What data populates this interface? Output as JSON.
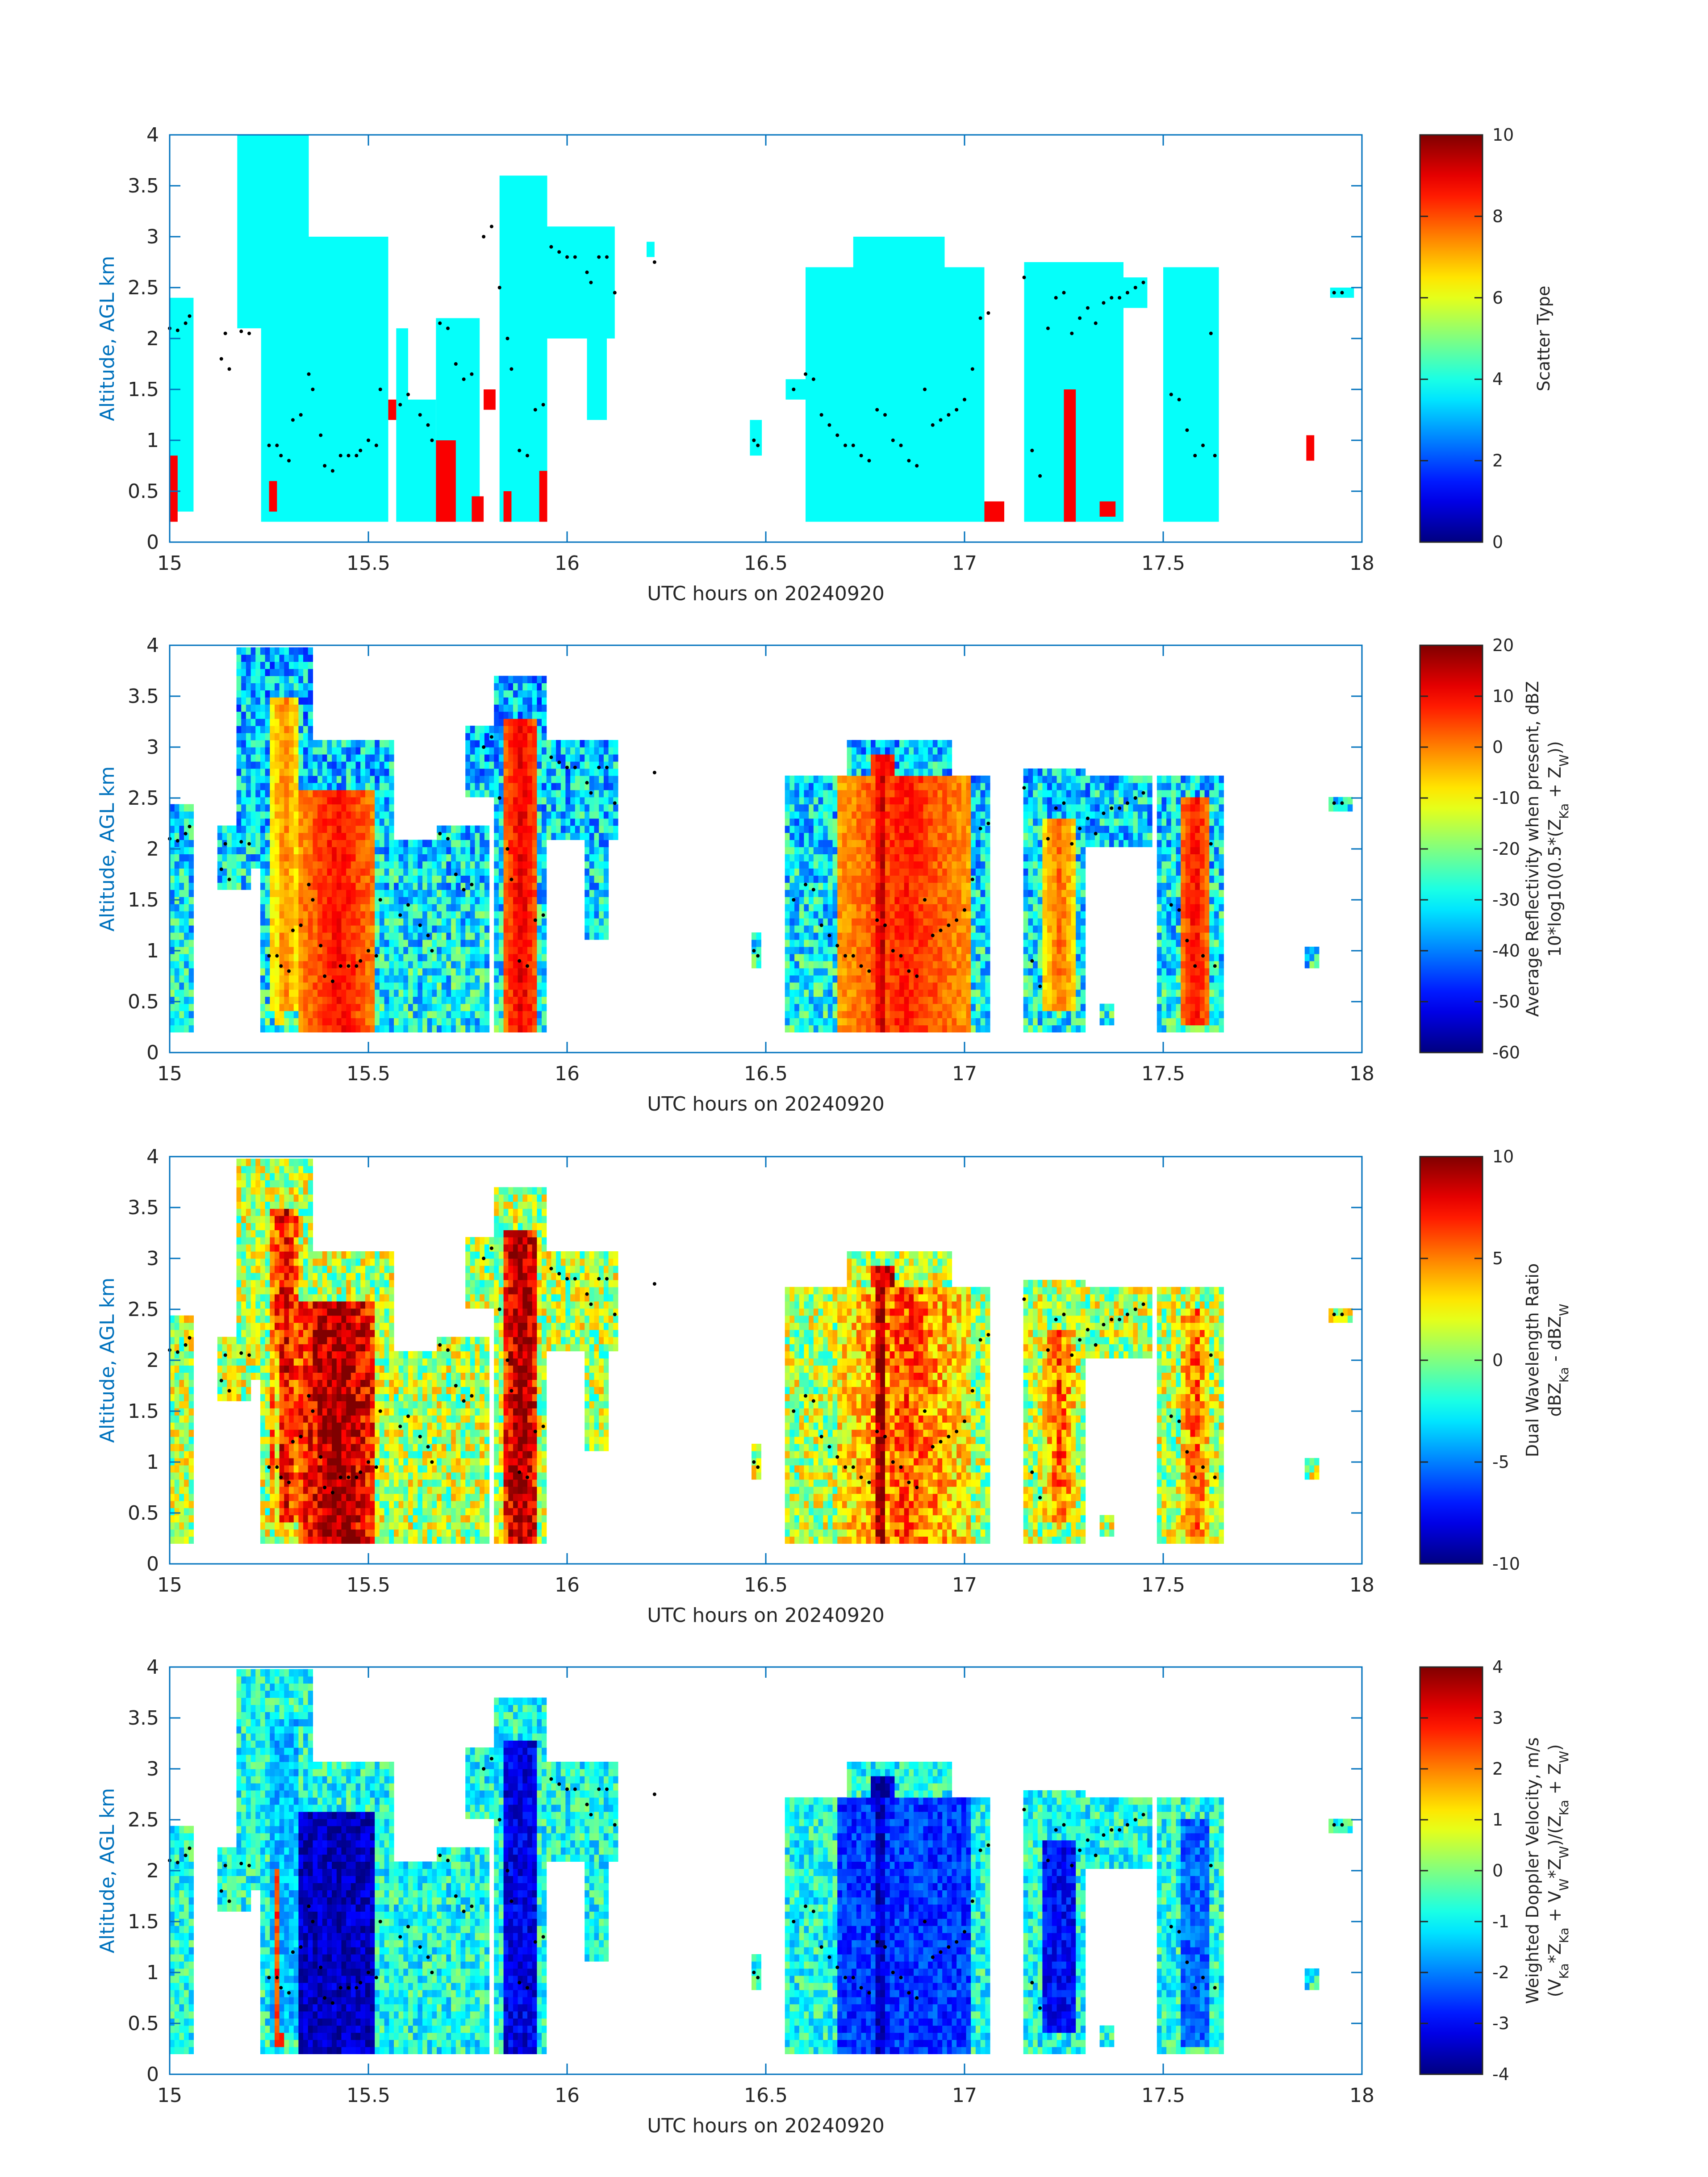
{
  "figure": {
    "date": "20240920"
  },
  "chart_data": [
    {
      "type": "heatmap",
      "name": "scatter-type",
      "xlabel": "UTC hours on 20240920",
      "ylabel": "Altitude, AGL km",
      "xlim": [
        15,
        18
      ],
      "ylim": [
        0,
        4
      ],
      "xticks": [
        "15",
        "15.5",
        "16",
        "16.5",
        "17",
        "17.5",
        "18"
      ],
      "yticks": [
        "0",
        "0.5",
        "1",
        "1.5",
        "2",
        "2.5",
        "3",
        "3.5",
        "4"
      ],
      "colorbar": {
        "label_lines": [
          "Scatter Type"
        ],
        "ticks": [
          "0",
          "2",
          "4",
          "6",
          "8",
          "10"
        ],
        "range": [
          0,
          10
        ],
        "colormap": "jet"
      },
      "field": "scatter",
      "cells": [
        {
          "t0": 15.0,
          "t1": 15.06,
          "z0": 0.3,
          "z1": 2.4,
          "value": 3.8
        },
        {
          "t0": 15.0,
          "t1": 15.02,
          "z0": 0.2,
          "z1": 0.85,
          "value": 8.8
        },
        {
          "t0": 15.17,
          "t1": 15.35,
          "z0": 2.1,
          "z1": 4.0,
          "value": 3.8
        },
        {
          "t0": 15.23,
          "t1": 15.55,
          "z0": 0.2,
          "z1": 3.0,
          "value": 3.8
        },
        {
          "t0": 15.25,
          "t1": 15.27,
          "z0": 0.3,
          "z1": 0.6,
          "value": 8.8
        },
        {
          "t0": 15.57,
          "t1": 15.6,
          "z0": 0.2,
          "z1": 2.1,
          "value": 3.8
        },
        {
          "t0": 15.55,
          "t1": 15.57,
          "z0": 1.2,
          "z1": 1.4,
          "value": 8.8
        },
        {
          "t0": 15.6,
          "t1": 15.67,
          "z0": 0.2,
          "z1": 1.4,
          "value": 3.8
        },
        {
          "t0": 15.67,
          "t1": 15.78,
          "z0": 0.2,
          "z1": 2.2,
          "value": 3.8
        },
        {
          "t0": 15.67,
          "t1": 15.72,
          "z0": 0.2,
          "z1": 1.0,
          "value": 8.8
        },
        {
          "t0": 15.76,
          "t1": 15.79,
          "z0": 0.2,
          "z1": 0.45,
          "value": 8.8
        },
        {
          "t0": 15.79,
          "t1": 15.82,
          "z0": 1.3,
          "z1": 1.5,
          "value": 8.8
        },
        {
          "t0": 15.83,
          "t1": 15.95,
          "z0": 0.2,
          "z1": 3.6,
          "value": 3.8
        },
        {
          "t0": 15.84,
          "t1": 15.86,
          "z0": 0.2,
          "z1": 0.5,
          "value": 8.8
        },
        {
          "t0": 15.93,
          "t1": 15.95,
          "z0": 0.2,
          "z1": 0.7,
          "value": 8.8
        },
        {
          "t0": 15.95,
          "t1": 16.12,
          "z0": 2.0,
          "z1": 3.1,
          "value": 3.8
        },
        {
          "t0": 16.05,
          "t1": 16.1,
          "z0": 1.2,
          "z1": 2.0,
          "value": 3.8
        },
        {
          "t0": 16.2,
          "t1": 16.22,
          "z0": 2.8,
          "z1": 2.95,
          "value": 3.8
        },
        {
          "t0": 16.46,
          "t1": 16.49,
          "z0": 0.85,
          "z1": 1.2,
          "value": 3.8
        },
        {
          "t0": 16.55,
          "t1": 16.6,
          "z0": 1.4,
          "z1": 1.6,
          "value": 3.8
        },
        {
          "t0": 16.6,
          "t1": 17.05,
          "z0": 0.2,
          "z1": 2.7,
          "value": 3.8
        },
        {
          "t0": 16.72,
          "t1": 16.95,
          "z0": 2.0,
          "z1": 3.0,
          "value": 3.8
        },
        {
          "t0": 17.05,
          "t1": 17.1,
          "z0": 0.2,
          "z1": 0.4,
          "value": 8.8
        },
        {
          "t0": 17.15,
          "t1": 17.4,
          "z0": 0.2,
          "z1": 2.75,
          "value": 3.8
        },
        {
          "t0": 17.25,
          "t1": 17.28,
          "z0": 0.2,
          "z1": 1.5,
          "value": 8.8
        },
        {
          "t0": 17.34,
          "t1": 17.38,
          "z0": 0.25,
          "z1": 0.4,
          "value": 8.8
        },
        {
          "t0": 17.4,
          "t1": 17.46,
          "z0": 2.3,
          "z1": 2.6,
          "value": 3.8
        },
        {
          "t0": 17.5,
          "t1": 17.64,
          "z0": 0.2,
          "z1": 2.7,
          "value": 3.8
        },
        {
          "t0": 17.86,
          "t1": 17.88,
          "z0": 0.8,
          "z1": 1.05,
          "value": 8.8
        },
        {
          "t0": 17.92,
          "t1": 17.98,
          "z0": 2.4,
          "z1": 2.5,
          "value": 3.8
        }
      ]
    },
    {
      "type": "heatmap",
      "name": "average-reflectivity",
      "xlabel": "UTC hours on 20240920",
      "ylabel": "Altitude, AGL km",
      "xlim": [
        15,
        18
      ],
      "ylim": [
        0,
        4
      ],
      "xticks": [
        "15",
        "15.5",
        "16",
        "16.5",
        "17",
        "17.5",
        "18"
      ],
      "yticks": [
        "0",
        "0.5",
        "1",
        "1.5",
        "2",
        "2.5",
        "3",
        "3.5",
        "4"
      ],
      "colorbar": {
        "label_lines": [
          "Average Reflectivity when present, dBZ",
          "10*log10(0.5*(Z_Ka + Z_W))"
        ],
        "ticks": [
          "-60",
          "-50",
          "-40",
          "-30",
          "-20",
          "-10",
          "0",
          "10",
          "20"
        ],
        "range": [
          -60,
          20
        ],
        "colormap": "jet"
      },
      "field": "reflectivity",
      "cells": []
    },
    {
      "type": "heatmap",
      "name": "dual-wavelength-ratio",
      "xlabel": "UTC hours on 20240920",
      "ylabel": "Altitude, AGL km",
      "xlim": [
        15,
        18
      ],
      "ylim": [
        0,
        4
      ],
      "xticks": [
        "15",
        "15.5",
        "16",
        "16.5",
        "17",
        "17.5",
        "18"
      ],
      "yticks": [
        "0",
        "0.5",
        "1",
        "1.5",
        "2",
        "2.5",
        "3",
        "3.5",
        "4"
      ],
      "colorbar": {
        "label_lines": [
          "Dual Wavelength Ratio",
          "dBZ_Ka - dBZ_W"
        ],
        "ticks": [
          "-10",
          "-5",
          "0",
          "5",
          "10"
        ],
        "range": [
          -10,
          10
        ],
        "colormap": "jet"
      },
      "field": "dwr",
      "cells": []
    },
    {
      "type": "heatmap",
      "name": "weighted-doppler-velocity",
      "xlabel": "UTC hours on 20240920",
      "ylabel": "Altitude, AGL km",
      "xlim": [
        15,
        18
      ],
      "ylim": [
        0,
        4
      ],
      "xticks": [
        "15",
        "15.5",
        "16",
        "16.5",
        "17",
        "17.5",
        "18"
      ],
      "yticks": [
        "0",
        "0.5",
        "1",
        "1.5",
        "2",
        "2.5",
        "3",
        "3.5",
        "4"
      ],
      "colorbar": {
        "label_lines": [
          "Weighted Doppler Velocity, m/s",
          "(V_Ka*Z_Ka + V_W*Z_W)/(Z_Ka + Z_W)"
        ],
        "ticks": [
          "-4",
          "-3",
          "-2",
          "-1",
          "0",
          "1",
          "2",
          "3",
          "4"
        ],
        "range": [
          -4,
          4
        ],
        "colormap": "jet"
      },
      "field": "velocity",
      "cells": []
    }
  ],
  "echo_regions": [
    {
      "t0": 15.0,
      "t1": 15.06,
      "z0": 0.2,
      "z1": 2.45
    },
    {
      "t0": 15.12,
      "t1": 15.2,
      "z0": 1.6,
      "z1": 2.2
    },
    {
      "t0": 15.17,
      "t1": 15.36,
      "z0": 1.8,
      "z1": 4.0
    },
    {
      "t0": 15.23,
      "t1": 15.56,
      "z0": 0.2,
      "z1": 3.1
    },
    {
      "t0": 15.56,
      "t1": 15.67,
      "z0": 0.2,
      "z1": 2.1
    },
    {
      "t0": 15.67,
      "t1": 15.8,
      "z0": 0.2,
      "z1": 2.2
    },
    {
      "t0": 15.82,
      "t1": 15.95,
      "z0": 0.2,
      "z1": 3.7
    },
    {
      "t0": 15.75,
      "t1": 15.85,
      "z0": 2.5,
      "z1": 3.2
    },
    {
      "t0": 15.95,
      "t1": 16.13,
      "z0": 2.1,
      "z1": 3.1
    },
    {
      "t0": 16.04,
      "t1": 16.1,
      "z0": 1.1,
      "z1": 2.1
    },
    {
      "t0": 16.46,
      "t1": 16.49,
      "z0": 0.8,
      "z1": 1.2
    },
    {
      "t0": 16.55,
      "t1": 17.06,
      "z0": 0.2,
      "z1": 2.7
    },
    {
      "t0": 16.7,
      "t1": 16.97,
      "z0": 2.0,
      "z1": 3.05
    },
    {
      "t0": 16.97,
      "t1": 17.06,
      "z0": 1.5,
      "z1": 2.7
    },
    {
      "t0": 17.15,
      "t1": 17.3,
      "z0": 0.2,
      "z1": 2.8
    },
    {
      "t0": 17.3,
      "t1": 17.47,
      "z0": 2.0,
      "z1": 2.75
    },
    {
      "t0": 17.34,
      "t1": 17.38,
      "z0": 0.25,
      "z1": 0.45
    },
    {
      "t0": 17.49,
      "t1": 17.65,
      "z0": 0.2,
      "z1": 2.75
    },
    {
      "t0": 17.86,
      "t1": 17.89,
      "z0": 0.8,
      "z1": 1.05
    },
    {
      "t0": 17.92,
      "t1": 17.98,
      "z0": 2.38,
      "z1": 2.52
    }
  ],
  "cores": [
    {
      "t0": 15.33,
      "t1": 15.52,
      "z0": 0.2,
      "z1": 2.6,
      "dbz": 10,
      "dwr": 10,
      "vel": -3.5
    },
    {
      "t0": 15.25,
      "t1": 15.33,
      "z0": 0.4,
      "z1": 3.5,
      "dbz": 0,
      "dwr": 8,
      "vel": -1.5
    },
    {
      "t0": 15.84,
      "t1": 15.93,
      "z0": 0.2,
      "z1": 3.3,
      "dbz": 12,
      "dwr": 10,
      "vel": -3.2
    },
    {
      "t0": 16.68,
      "t1": 17.02,
      "z0": 0.2,
      "z1": 2.7,
      "dbz": 8,
      "dwr": 6,
      "vel": -2.6
    },
    {
      "t0": 16.76,
      "t1": 16.83,
      "z0": 0.2,
      "z1": 2.9,
      "dbz": 14,
      "dwr": 10,
      "vel": -3.5
    },
    {
      "t0": 17.2,
      "t1": 17.28,
      "z0": 0.4,
      "z1": 2.3,
      "dbz": 2,
      "dwr": 6,
      "vel": -3.0
    },
    {
      "t0": 17.54,
      "t1": 17.62,
      "z0": 0.3,
      "z1": 2.5,
      "dbz": 10,
      "dwr": 6,
      "vel": -2.2
    },
    {
      "t0": 15.26,
      "t1": 15.29,
      "z0": 0.3,
      "z1": 2.0,
      "dbz": -5,
      "dwr": 4,
      "vel": 2.5
    }
  ],
  "radiosonde_dots": [
    [
      15.0,
      2.1
    ],
    [
      15.02,
      2.08
    ],
    [
      15.04,
      2.15
    ],
    [
      15.05,
      2.22
    ],
    [
      15.14,
      2.05
    ],
    [
      15.18,
      2.07
    ],
    [
      15.2,
      2.05
    ],
    [
      15.13,
      1.8
    ],
    [
      15.15,
      1.7
    ],
    [
      15.25,
      0.95
    ],
    [
      15.27,
      0.95
    ],
    [
      15.28,
      0.85
    ],
    [
      15.3,
      0.8
    ],
    [
      15.31,
      1.2
    ],
    [
      15.33,
      1.25
    ],
    [
      15.35,
      1.65
    ],
    [
      15.36,
      1.5
    ],
    [
      15.38,
      1.05
    ],
    [
      15.39,
      0.75
    ],
    [
      15.41,
      0.7
    ],
    [
      15.43,
      0.85
    ],
    [
      15.45,
      0.85
    ],
    [
      15.47,
      0.85
    ],
    [
      15.48,
      0.9
    ],
    [
      15.5,
      1.0
    ],
    [
      15.52,
      0.95
    ],
    [
      15.53,
      1.5
    ],
    [
      15.58,
      1.35
    ],
    [
      15.6,
      1.45
    ],
    [
      15.63,
      1.25
    ],
    [
      15.65,
      1.15
    ],
    [
      15.66,
      1.0
    ],
    [
      15.68,
      2.15
    ],
    [
      15.7,
      2.1
    ],
    [
      15.72,
      1.75
    ],
    [
      15.74,
      1.6
    ],
    [
      15.76,
      1.65
    ],
    [
      15.79,
      3.0
    ],
    [
      15.81,
      3.1
    ],
    [
      15.83,
      2.5
    ],
    [
      15.85,
      2.0
    ],
    [
      15.86,
      1.7
    ],
    [
      15.88,
      0.9
    ],
    [
      15.9,
      0.85
    ],
    [
      15.92,
      1.3
    ],
    [
      15.94,
      1.35
    ],
    [
      15.96,
      2.9
    ],
    [
      15.98,
      2.85
    ],
    [
      16.0,
      2.8
    ],
    [
      16.02,
      2.8
    ],
    [
      16.05,
      2.65
    ],
    [
      16.06,
      2.55
    ],
    [
      16.08,
      2.8
    ],
    [
      16.1,
      2.8
    ],
    [
      16.12,
      2.45
    ],
    [
      16.22,
      2.75
    ],
    [
      16.47,
      1.0
    ],
    [
      16.48,
      0.95
    ],
    [
      16.57,
      1.5
    ],
    [
      16.6,
      1.65
    ],
    [
      16.62,
      1.6
    ],
    [
      16.64,
      1.25
    ],
    [
      16.66,
      1.15
    ],
    [
      16.68,
      1.05
    ],
    [
      16.7,
      0.95
    ],
    [
      16.72,
      0.95
    ],
    [
      16.74,
      0.85
    ],
    [
      16.76,
      0.8
    ],
    [
      16.78,
      1.3
    ],
    [
      16.8,
      1.25
    ],
    [
      16.82,
      1.0
    ],
    [
      16.84,
      0.95
    ],
    [
      16.86,
      0.8
    ],
    [
      16.88,
      0.75
    ],
    [
      16.9,
      1.5
    ],
    [
      16.92,
      1.15
    ],
    [
      16.94,
      1.2
    ],
    [
      16.96,
      1.25
    ],
    [
      16.98,
      1.3
    ],
    [
      17.0,
      1.4
    ],
    [
      17.02,
      1.7
    ],
    [
      17.04,
      2.2
    ],
    [
      17.06,
      2.25
    ],
    [
      17.15,
      2.6
    ],
    [
      17.17,
      0.9
    ],
    [
      17.19,
      0.65
    ],
    [
      17.21,
      2.1
    ],
    [
      17.23,
      2.4
    ],
    [
      17.25,
      2.45
    ],
    [
      17.27,
      2.05
    ],
    [
      17.29,
      2.2
    ],
    [
      17.31,
      2.3
    ],
    [
      17.33,
      2.15
    ],
    [
      17.35,
      2.35
    ],
    [
      17.37,
      2.4
    ],
    [
      17.39,
      2.4
    ],
    [
      17.41,
      2.45
    ],
    [
      17.43,
      2.5
    ],
    [
      17.45,
      2.55
    ],
    [
      17.52,
      1.45
    ],
    [
      17.54,
      1.4
    ],
    [
      17.56,
      1.1
    ],
    [
      17.58,
      0.85
    ],
    [
      17.6,
      0.95
    ],
    [
      17.62,
      2.05
    ],
    [
      17.63,
      0.85
    ],
    [
      17.93,
      2.45
    ],
    [
      17.95,
      2.45
    ]
  ]
}
